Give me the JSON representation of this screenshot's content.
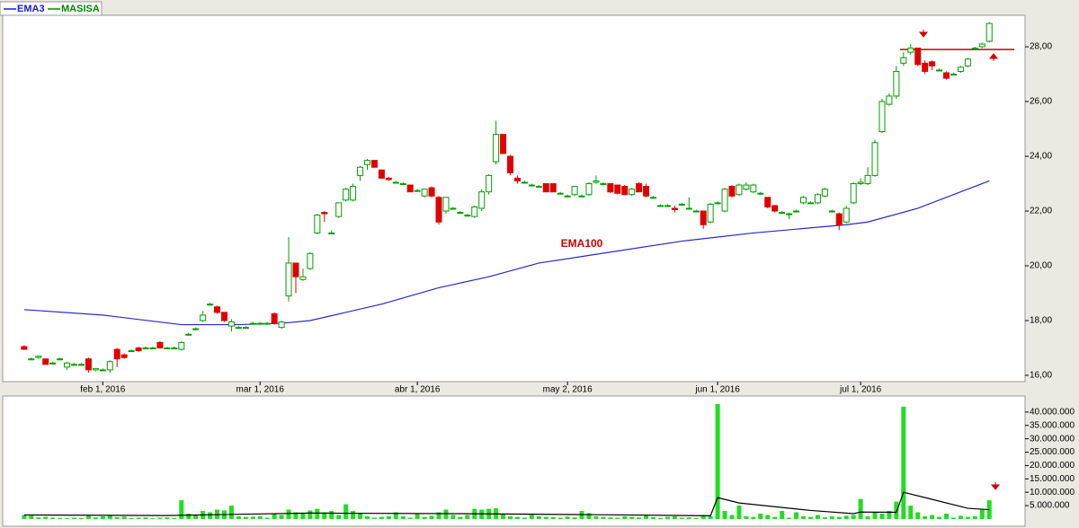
{
  "chart_data": [
    {
      "type": "candlestick",
      "name": "MASISA",
      "legend": [
        {
          "name": "EMA3",
          "color": "#1a1adc"
        },
        {
          "name": "MASISA",
          "color": "#008800"
        }
      ],
      "annotation": "EMA100",
      "xlim": [
        -3,
        140
      ],
      "ylim": [
        15.77,
        29.15
      ],
      "xticks": [
        {
          "value": 11,
          "label": "feb 1, 2016"
        },
        {
          "value": 33,
          "label": "mar 1, 2016"
        },
        {
          "value": 55,
          "label": "abr 1, 2016"
        },
        {
          "value": 76,
          "label": "may 2, 2016"
        },
        {
          "value": 97,
          "label": "jun 1, 2016"
        },
        {
          "value": 117,
          "label": "jul 1, 2016"
        }
      ],
      "yticks": [
        {
          "value": 16,
          "label": "16,00"
        },
        {
          "value": 18,
          "label": "18,00"
        },
        {
          "value": 20,
          "label": "20,00"
        },
        {
          "value": 22,
          "label": "22,00"
        },
        {
          "value": 24,
          "label": "24,00"
        },
        {
          "value": 26,
          "label": "26,00"
        },
        {
          "value": 28,
          "label": "28,00"
        }
      ],
      "up_color": "#00a000",
      "down_color": "#e00000",
      "ohlc": [
        [
          17.05,
          17.1,
          16.95,
          16.95
        ],
        [
          16.6,
          16.65,
          16.55,
          16.6
        ],
        [
          16.65,
          16.7,
          16.6,
          16.7
        ],
        [
          16.6,
          16.6,
          16.4,
          16.4
        ],
        [
          16.45,
          16.5,
          16.4,
          16.45
        ],
        [
          16.6,
          16.65,
          16.55,
          16.6
        ],
        [
          16.3,
          16.5,
          16.2,
          16.45
        ],
        [
          16.4,
          16.45,
          16.35,
          16.4
        ],
        [
          16.4,
          16.45,
          16.35,
          16.4
        ],
        [
          16.6,
          16.65,
          16.1,
          16.2
        ],
        [
          16.2,
          16.25,
          16.15,
          16.25
        ],
        [
          16.2,
          16.25,
          16.15,
          16.2
        ],
        [
          16.2,
          16.55,
          16.1,
          16.5
        ],
        [
          16.95,
          17.0,
          16.3,
          16.6
        ],
        [
          16.75,
          16.8,
          16.6,
          16.65
        ],
        [
          16.9,
          16.95,
          16.85,
          16.9
        ],
        [
          17.0,
          17.05,
          16.85,
          16.9
        ],
        [
          17.0,
          17.05,
          16.95,
          17.0
        ],
        [
          17.0,
          17.05,
          16.95,
          17.0
        ],
        [
          17.2,
          17.25,
          17.0,
          17.0
        ],
        [
          17.0,
          17.05,
          16.95,
          17.0
        ],
        [
          17.0,
          17.05,
          16.95,
          17.0
        ],
        [
          16.95,
          17.25,
          16.9,
          17.2
        ],
        [
          17.5,
          17.55,
          17.45,
          17.5
        ],
        [
          17.7,
          17.75,
          17.65,
          17.7
        ],
        [
          18.0,
          18.35,
          17.95,
          18.2
        ],
        [
          18.6,
          18.65,
          18.55,
          18.6
        ],
        [
          18.5,
          18.55,
          18.25,
          18.3
        ],
        [
          18.3,
          18.3,
          17.95,
          18.0
        ],
        [
          17.8,
          18.05,
          17.6,
          17.95
        ],
        [
          17.75,
          17.8,
          17.7,
          17.75
        ],
        [
          17.75,
          17.8,
          17.7,
          17.75
        ],
        [
          17.9,
          17.95,
          17.85,
          17.9
        ],
        [
          17.9,
          17.95,
          17.85,
          17.9
        ],
        [
          17.9,
          17.95,
          17.85,
          17.9
        ],
        [
          18.25,
          18.3,
          17.85,
          17.9
        ],
        [
          17.75,
          18.0,
          17.7,
          17.95
        ],
        [
          18.9,
          21.05,
          18.7,
          20.1
        ],
        [
          20.1,
          20.1,
          19.0,
          19.6
        ],
        [
          19.5,
          19.9,
          19.45,
          19.6
        ],
        [
          19.9,
          20.5,
          19.85,
          20.45
        ],
        [
          21.2,
          21.9,
          21.15,
          21.85
        ],
        [
          21.95,
          22.0,
          21.6,
          21.9
        ],
        [
          21.2,
          21.3,
          21.15,
          21.2
        ],
        [
          21.8,
          22.3,
          21.75,
          22.3
        ],
        [
          22.4,
          22.85,
          22.35,
          22.8
        ],
        [
          22.4,
          23.0,
          22.35,
          22.9
        ],
        [
          23.3,
          23.65,
          23.1,
          23.6
        ],
        [
          23.7,
          23.9,
          23.5,
          23.85
        ],
        [
          23.85,
          23.85,
          23.6,
          23.6
        ],
        [
          23.5,
          23.5,
          23.2,
          23.2
        ],
        [
          23.2,
          23.25,
          23.1,
          23.15
        ],
        [
          23.05,
          23.1,
          23.0,
          23.05
        ],
        [
          23.0,
          23.05,
          22.95,
          23.0
        ],
        [
          22.95,
          22.95,
          22.7,
          22.7
        ],
        [
          22.75,
          22.8,
          22.7,
          22.75
        ],
        [
          22.55,
          22.8,
          22.5,
          22.8
        ],
        [
          22.85,
          22.9,
          22.5,
          22.55
        ],
        [
          22.5,
          22.55,
          21.5,
          21.6
        ],
        [
          22.0,
          22.5,
          21.9,
          22.5
        ],
        [
          22.1,
          22.15,
          22.05,
          22.1
        ],
        [
          21.95,
          22.0,
          21.9,
          21.95
        ],
        [
          21.85,
          21.9,
          21.8,
          21.85
        ],
        [
          21.8,
          22.2,
          21.75,
          22.15
        ],
        [
          22.1,
          22.8,
          22.0,
          22.7
        ],
        [
          22.7,
          23.35,
          22.6,
          23.3
        ],
        [
          23.8,
          25.3,
          23.7,
          24.8
        ],
        [
          24.8,
          24.8,
          24.1,
          24.1
        ],
        [
          24.0,
          24.05,
          23.3,
          23.4
        ],
        [
          23.2,
          23.3,
          23.0,
          23.1
        ],
        [
          23.05,
          23.1,
          23.0,
          23.05
        ],
        [
          22.95,
          23.0,
          22.9,
          22.95
        ],
        [
          22.9,
          22.95,
          22.85,
          22.9
        ],
        [
          23.0,
          23.0,
          22.7,
          22.7
        ],
        [
          23.0,
          23.0,
          22.7,
          22.7
        ],
        [
          22.65,
          22.7,
          22.6,
          22.65
        ],
        [
          22.55,
          22.6,
          22.5,
          22.55
        ],
        [
          22.6,
          22.9,
          22.55,
          22.9
        ],
        [
          22.55,
          22.6,
          22.5,
          22.55
        ],
        [
          22.6,
          23.05,
          22.55,
          23.0
        ],
        [
          23.05,
          23.3,
          23.0,
          23.1
        ],
        [
          23.0,
          23.05,
          22.95,
          23.0
        ],
        [
          23.0,
          23.0,
          22.65,
          22.7
        ],
        [
          22.95,
          22.95,
          22.6,
          22.65
        ],
        [
          22.9,
          22.95,
          22.6,
          22.6
        ],
        [
          22.6,
          22.85,
          22.55,
          22.8
        ],
        [
          23.0,
          23.05,
          22.7,
          22.7
        ],
        [
          22.9,
          23.0,
          22.5,
          22.55
        ],
        [
          22.5,
          22.55,
          22.45,
          22.5
        ],
        [
          22.2,
          22.25,
          22.15,
          22.2
        ],
        [
          22.2,
          22.25,
          22.15,
          22.2
        ],
        [
          22.1,
          22.2,
          21.95,
          22.05
        ],
        [
          22.25,
          22.3,
          22.2,
          22.25
        ],
        [
          22.1,
          22.5,
          22.05,
          22.1
        ],
        [
          22.0,
          22.05,
          21.95,
          22.0
        ],
        [
          22.0,
          22.0,
          21.35,
          21.5
        ],
        [
          21.6,
          22.3,
          21.55,
          22.25
        ],
        [
          22.3,
          22.35,
          22.25,
          22.3
        ],
        [
          22.0,
          22.85,
          21.95,
          22.8
        ],
        [
          22.9,
          22.95,
          22.5,
          22.55
        ],
        [
          22.6,
          23.0,
          22.55,
          22.95
        ],
        [
          22.8,
          23.05,
          22.75,
          22.95
        ],
        [
          22.7,
          23.0,
          22.65,
          22.95
        ],
        [
          22.65,
          22.7,
          22.6,
          22.65
        ],
        [
          22.5,
          22.5,
          22.1,
          22.15
        ],
        [
          22.2,
          22.2,
          21.95,
          22.0
        ],
        [
          21.95,
          22.0,
          21.9,
          21.95
        ],
        [
          21.9,
          21.95,
          21.7,
          21.9
        ],
        [
          22.0,
          22.05,
          21.95,
          22.0
        ],
        [
          22.3,
          22.55,
          22.25,
          22.5
        ],
        [
          22.3,
          22.35,
          22.25,
          22.3
        ],
        [
          22.3,
          22.65,
          22.25,
          22.6
        ],
        [
          22.55,
          22.85,
          22.5,
          22.8
        ],
        [
          22.0,
          22.05,
          21.95,
          22.0
        ],
        [
          21.9,
          21.95,
          21.3,
          21.5
        ],
        [
          21.6,
          22.2,
          21.55,
          22.1
        ],
        [
          22.3,
          23.05,
          22.25,
          23.0
        ],
        [
          23.0,
          23.2,
          22.95,
          23.05
        ],
        [
          23.0,
          23.6,
          22.95,
          23.3
        ],
        [
          23.3,
          24.6,
          23.25,
          24.5
        ],
        [
          24.9,
          26.1,
          24.85,
          26.0
        ],
        [
          25.9,
          26.3,
          25.85,
          26.2
        ],
        [
          26.2,
          27.3,
          26.1,
          27.1
        ],
        [
          27.4,
          27.8,
          27.3,
          27.6
        ],
        [
          27.8,
          28.1,
          27.7,
          27.95
        ],
        [
          27.95,
          27.95,
          27.3,
          27.35
        ],
        [
          27.4,
          27.5,
          27.0,
          27.1
        ],
        [
          27.45,
          27.5,
          27.15,
          27.3
        ],
        [
          27.15,
          27.2,
          27.1,
          27.15
        ],
        [
          27.05,
          27.1,
          26.8,
          26.85
        ],
        [
          27.0,
          27.05,
          26.95,
          27.0
        ],
        [
          27.1,
          27.3,
          27.05,
          27.25
        ],
        [
          27.3,
          27.6,
          27.25,
          27.55
        ],
        [
          27.95,
          28.0,
          27.9,
          27.95
        ],
        [
          28.0,
          28.15,
          27.95,
          28.1
        ],
        [
          28.2,
          28.9,
          28.15,
          28.85
        ]
      ],
      "series": [
        {
          "name": "EMA100",
          "color": "#2828d0",
          "x": [
            0,
            11,
            22,
            30,
            36,
            40,
            50,
            58,
            65,
            72,
            82,
            92,
            102,
            115,
            118,
            125,
            135
          ],
          "values": [
            18.4,
            18.2,
            17.85,
            17.85,
            17.9,
            18.0,
            18.6,
            19.2,
            19.6,
            20.1,
            20.5,
            20.9,
            21.2,
            21.5,
            21.6,
            22.1,
            23.1
          ]
        }
      ],
      "hline": {
        "value": 27.9,
        "color": "#cc0000"
      }
    },
    {
      "type": "bar",
      "xlim": [
        -3,
        140
      ],
      "ylim": [
        -2700000,
        46000000
      ],
      "color": "#22dd22",
      "yticks": [
        {
          "value": 5000000,
          "label": "5.000.000"
        },
        {
          "value": 10000000,
          "label": "10.000.000"
        },
        {
          "value": 15000000,
          "label": "15.000.000"
        },
        {
          "value": 20000000,
          "label": "20.000.000"
        },
        {
          "value": 25000000,
          "label": "25.000.000"
        },
        {
          "value": 30000000,
          "label": "30.000.000"
        },
        {
          "value": 35000000,
          "label": "35.000.000"
        },
        {
          "value": 40000000,
          "label": "40.000.000"
        }
      ],
      "values": [
        1500000.0,
        1200000.0,
        600000.0,
        800000.0,
        500000.0,
        400000.0,
        300000.0,
        500000.0,
        400000.0,
        1200000.0,
        600000.0,
        1000000.0,
        1300000.0,
        700000.0,
        900000.0,
        400000.0,
        500000.0,
        600000.0,
        300000.0,
        500000.0,
        600000.0,
        400000.0,
        7000000.0,
        2000000.0,
        1500000.0,
        3000000.0,
        2500000.0,
        3500000.0,
        3200000.0,
        5000000.0,
        1000000.0,
        800000.0,
        900000.0,
        1000000.0,
        500000.0,
        2000000.0,
        1500000.0,
        3500000.0,
        2500000.0,
        2000000.0,
        3200000.0,
        3800000.0,
        2500000.0,
        3000000.0,
        1500000.0,
        5500000.0,
        3000000.0,
        2000000.0,
        1000000.0,
        500000.0,
        800000.0,
        1000000.0,
        2500000.0,
        1000000.0,
        500000.0,
        2000000.0,
        800000.0,
        1200000.0,
        2500000.0,
        3500000.0,
        1500000.0,
        800000.0,
        1500000.0,
        3800000.0,
        3500000.0,
        3800000.0,
        4000000.0,
        2000000.0,
        1000000.0,
        800000.0,
        500000.0,
        1500000.0,
        1000000.0,
        800000.0,
        700000.0,
        500000.0,
        900000.0,
        600000.0,
        3000000.0,
        2200000.0,
        1000000.0,
        800000.0,
        600000.0,
        500000.0,
        1000000.0,
        800000.0,
        600000.0,
        1500000.0,
        700000.0,
        400000.0,
        800000.0,
        1000000.0,
        500000.0,
        600000.0,
        400000.0,
        1500000.0,
        1000000.0,
        43000000.0,
        3000000.0,
        1500000.0,
        5000000.0,
        1000000.0,
        800000.0,
        2000000.0,
        1500000.0,
        800000.0,
        3000000.0,
        500000.0,
        2500000.0,
        1000000.0,
        800000.0,
        1500000.0,
        600000.0,
        1000000.0,
        800000.0,
        1200000.0,
        1500000.0,
        7500000.0,
        1000000.0,
        2500000.0,
        2000000.0,
        3000000.0,
        6500000.0,
        42000000.0,
        5000000.0,
        2500000.0,
        1000000.0,
        1500000.0,
        800000.0,
        2000000.0,
        500000.0,
        1200000.0,
        800000.0,
        1000000.0,
        3500000.0,
        7000000.0
      ],
      "series": [
        {
          "color": "#000000",
          "x": [
            0,
            20,
            40,
            60,
            80,
            96,
            97,
            100,
            110,
            116,
            117,
            122,
            123,
            126,
            132,
            135
          ],
          "values": [
            1500000.0,
            1300000.0,
            2200000.0,
            2000000.0,
            1600000.0,
            1200000.0,
            8000000.0,
            6000000.0,
            3200000.0,
            2000000.0,
            2600000.0,
            2500000.0,
            10000000.0,
            8000000.0,
            4000000.0,
            3500000.0
          ]
        }
      ]
    }
  ]
}
